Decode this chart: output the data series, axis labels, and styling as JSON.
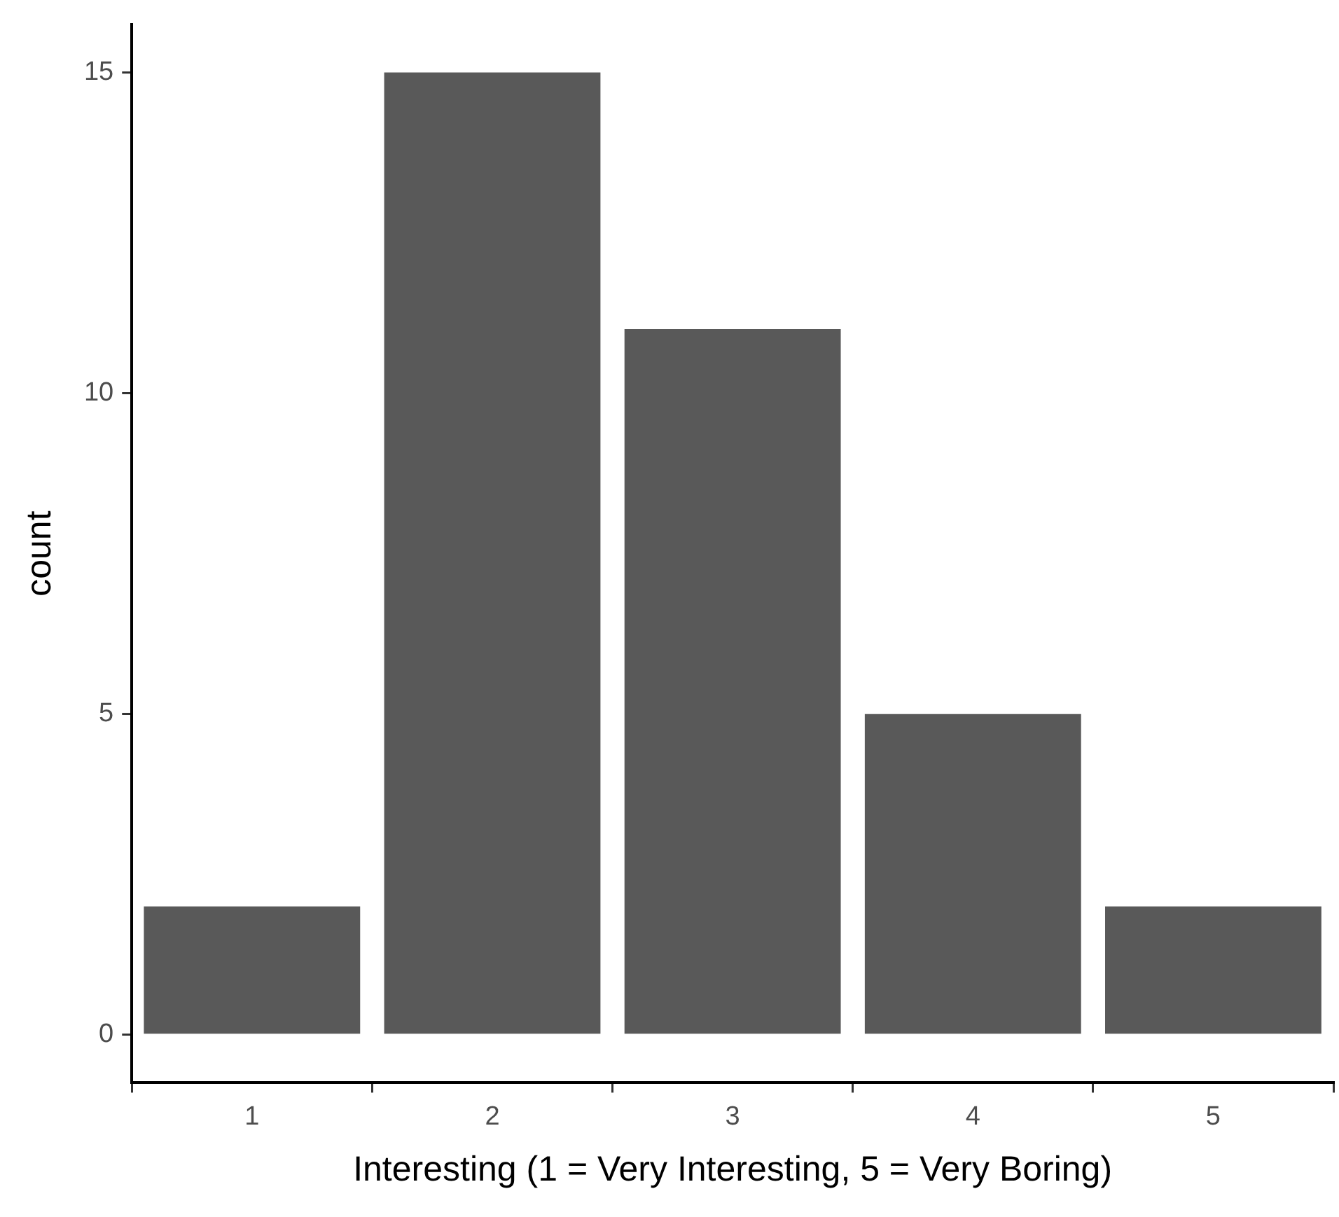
{
  "chart_data": {
    "type": "bar",
    "xlabel": "Interesting (1 = Very Interesting, 5 = Very Boring)",
    "ylabel": "count",
    "categories": [
      "1",
      "2",
      "3",
      "4",
      "5"
    ],
    "values": [
      2,
      15,
      11,
      5,
      2
    ],
    "color": "#595959",
    "ylim": [
      -0.75,
      15.75
    ],
    "yticks": [
      0,
      5,
      10,
      15
    ],
    "grid": false,
    "legend": false
  }
}
